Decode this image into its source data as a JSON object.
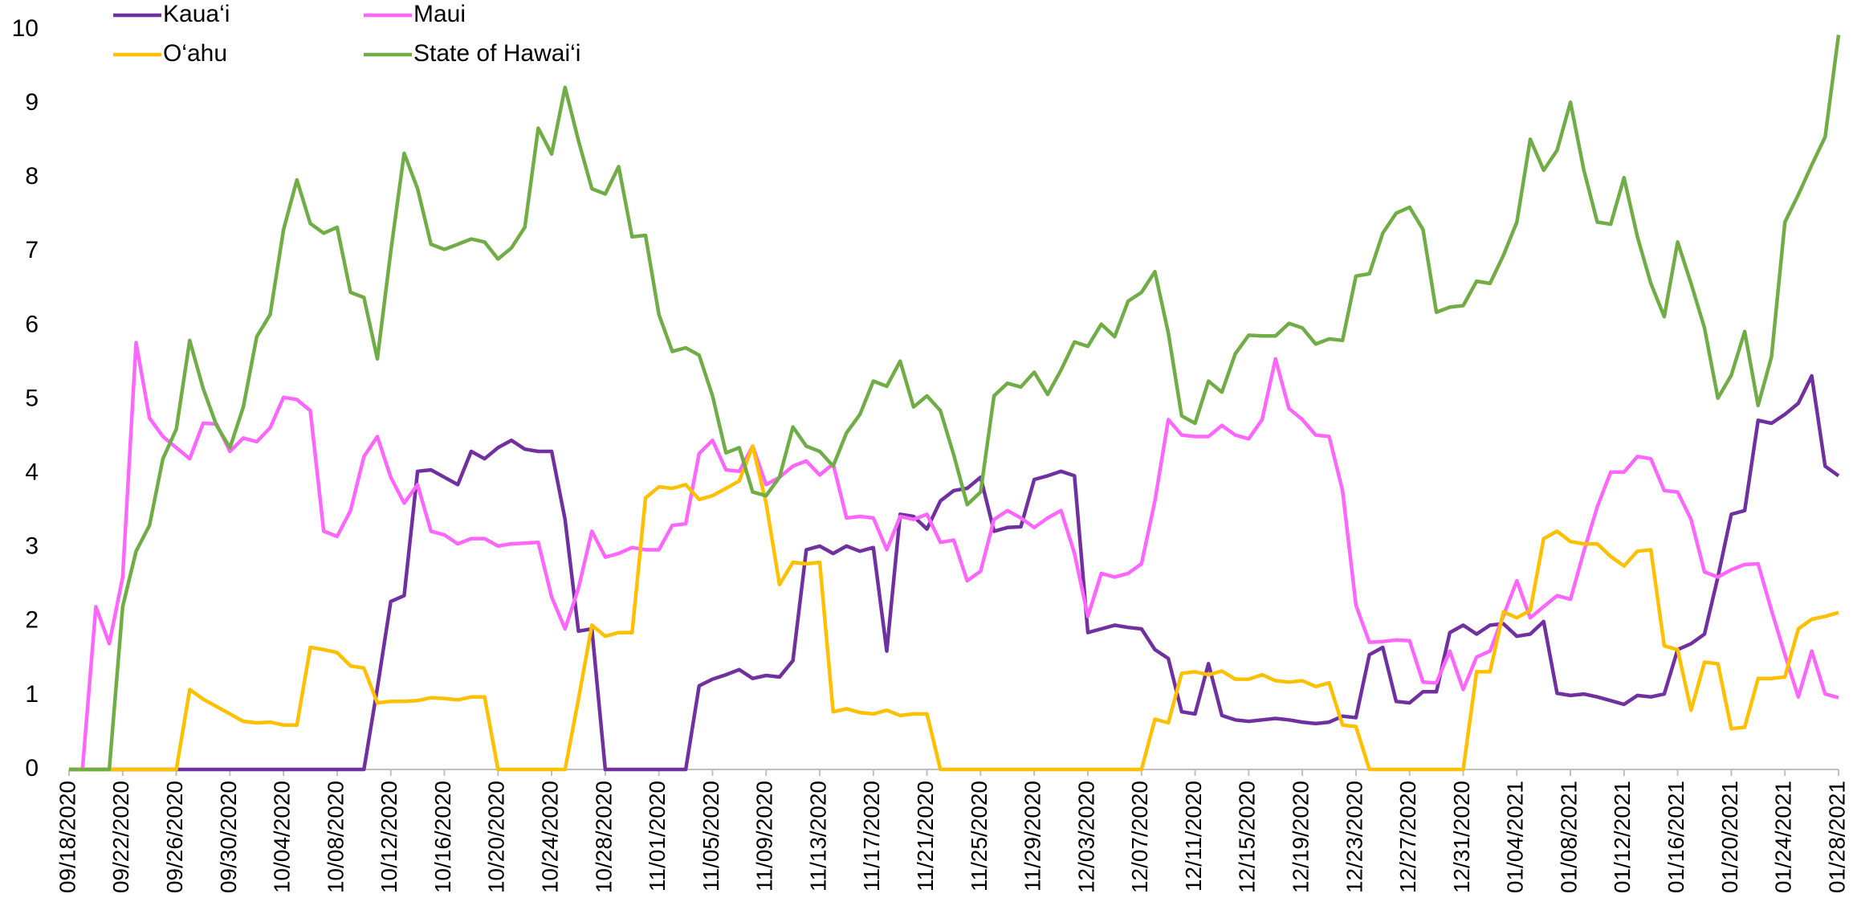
{
  "chart_data": {
    "type": "line",
    "categories": [
      "09/18/2020",
      null,
      null,
      null,
      "09/22/2020",
      null,
      null,
      null,
      "09/26/2020",
      null,
      null,
      null,
      "09/30/2020",
      null,
      null,
      null,
      "10/04/2020",
      null,
      null,
      null,
      "10/08/2020",
      null,
      null,
      null,
      "10/12/2020",
      null,
      null,
      null,
      "10/16/2020",
      null,
      null,
      null,
      "10/20/2020",
      null,
      null,
      null,
      "10/24/2020",
      null,
      null,
      null,
      "10/28/2020",
      null,
      null,
      null,
      "11/01/2020",
      null,
      null,
      null,
      "11/05/2020",
      null,
      null,
      null,
      "11/09/2020",
      null,
      null,
      null,
      "11/13/2020",
      null,
      null,
      null,
      "11/17/2020",
      null,
      null,
      null,
      "11/21/2020",
      null,
      null,
      null,
      "11/25/2020",
      null,
      null,
      null,
      "11/29/2020",
      null,
      null,
      null,
      "12/03/2020",
      null,
      null,
      null,
      "12/07/2020",
      null,
      null,
      null,
      "12/11/2020",
      null,
      null,
      null,
      "12/15/2020",
      null,
      null,
      null,
      "12/19/2020",
      null,
      null,
      null,
      "12/23/2020",
      null,
      null,
      null,
      "12/27/2020",
      null,
      null,
      null,
      "12/31/2020",
      null,
      null,
      null,
      "01/04/2021",
      null,
      null,
      null,
      "01/08/2021",
      null,
      null,
      null,
      "01/12/2021",
      null,
      null,
      null,
      "01/16/2021",
      null,
      null,
      null,
      "01/20/2021",
      null,
      null,
      null,
      "01/24/2021",
      null,
      null,
      null,
      "01/28/2021"
    ],
    "series": [
      {
        "name": "Kaua‘i",
        "color": "#7030a0",
        "values": [
          0,
          0,
          0,
          0,
          0,
          0,
          0,
          0,
          0,
          0,
          0,
          0,
          0,
          0,
          0,
          0,
          0,
          0,
          0,
          0,
          0,
          0,
          0,
          1.1,
          2.27,
          2.35,
          4.03,
          4.05,
          3.95,
          3.85,
          4.3,
          4.2,
          4.35,
          4.45,
          4.33,
          4.3,
          4.3,
          3.38,
          1.87,
          1.9,
          0,
          0,
          0,
          0,
          0,
          0,
          0,
          1.13,
          1.22,
          1.28,
          1.35,
          1.23,
          1.27,
          1.25,
          1.47,
          2.97,
          3.02,
          2.92,
          3.02,
          2.95,
          3.0,
          1.6,
          3.45,
          3.42,
          3.25,
          3.63,
          3.77,
          3.8,
          3.95,
          3.22,
          3.27,
          3.28,
          3.92,
          3.97,
          4.03,
          3.97,
          1.85,
          1.9,
          1.95,
          1.92,
          1.9,
          1.62,
          1.5,
          0.78,
          0.75,
          1.43,
          0.73,
          0.67,
          0.65,
          0.67,
          0.69,
          0.67,
          0.64,
          0.62,
          0.64,
          0.72,
          0.7,
          1.55,
          1.65,
          0.92,
          0.9,
          1.05,
          1.05,
          1.85,
          1.95,
          1.83,
          1.95,
          1.97,
          1.8,
          1.83,
          2.0,
          1.03,
          1.0,
          1.02,
          0.98,
          0.93,
          0.88,
          1.0,
          0.98,
          1.02,
          1.62,
          1.7,
          1.83,
          2.6,
          3.45,
          3.5,
          4.72,
          4.68,
          4.8,
          4.95,
          5.32,
          4.1,
          3.97
        ]
      },
      {
        "name": "Maui",
        "color": "#ff66ff",
        "values": [
          0,
          0,
          2.2,
          1.7,
          2.6,
          5.77,
          4.75,
          4.5,
          4.35,
          4.2,
          4.68,
          4.67,
          4.3,
          4.48,
          4.43,
          4.62,
          5.03,
          5.0,
          4.85,
          3.22,
          3.15,
          3.5,
          4.23,
          4.5,
          3.95,
          3.6,
          3.85,
          3.22,
          3.17,
          3.05,
          3.12,
          3.12,
          3.02,
          3.05,
          3.06,
          3.07,
          2.33,
          1.9,
          2.45,
          3.22,
          2.87,
          2.92,
          3.0,
          2.97,
          2.97,
          3.3,
          3.32,
          4.27,
          4.45,
          4.05,
          4.03,
          4.37,
          3.85,
          3.95,
          4.1,
          4.17,
          3.98,
          4.13,
          3.4,
          3.42,
          3.4,
          2.97,
          3.42,
          3.38,
          3.45,
          3.07,
          3.1,
          2.55,
          2.68,
          3.38,
          3.5,
          3.4,
          3.27,
          3.4,
          3.5,
          2.92,
          2.07,
          2.65,
          2.6,
          2.65,
          2.78,
          3.63,
          4.73,
          4.52,
          4.5,
          4.5,
          4.65,
          4.52,
          4.47,
          4.73,
          5.55,
          4.88,
          4.73,
          4.52,
          4.5,
          3.77,
          2.22,
          1.72,
          1.73,
          1.75,
          1.74,
          1.18,
          1.17,
          1.6,
          1.08,
          1.52,
          1.6,
          2.08,
          2.55,
          2.05,
          2.2,
          2.35,
          2.3,
          2.95,
          3.55,
          4.02,
          4.02,
          4.23,
          4.2,
          3.77,
          3.75,
          3.38,
          2.67,
          2.6,
          2.7,
          2.77,
          2.78,
          2.15,
          1.55,
          0.98,
          1.6,
          1.02,
          0.97
        ]
      },
      {
        "name": "O‘ahu",
        "color": "#ffc000",
        "values": [
          0,
          0,
          0,
          0,
          0,
          0,
          0,
          0,
          0,
          1.08,
          0.95,
          0.85,
          0.75,
          0.65,
          0.63,
          0.64,
          0.6,
          0.6,
          1.65,
          1.62,
          1.58,
          1.4,
          1.37,
          0.9,
          0.92,
          0.92,
          0.93,
          0.97,
          0.96,
          0.94,
          0.98,
          0.98,
          0,
          0,
          0,
          0,
          0,
          0,
          0.95,
          1.95,
          1.8,
          1.85,
          1.85,
          3.67,
          3.82,
          3.8,
          3.85,
          3.65,
          3.7,
          3.8,
          3.9,
          4.37,
          3.6,
          2.5,
          2.8,
          2.78,
          2.8,
          0.78,
          0.82,
          0.77,
          0.75,
          0.8,
          0.73,
          0.75,
          0.75,
          0,
          0,
          0,
          0,
          0,
          0,
          0,
          0,
          0,
          0,
          0,
          0,
          0,
          0,
          0,
          0,
          0.68,
          0.63,
          1.3,
          1.32,
          1.28,
          1.33,
          1.22,
          1.22,
          1.28,
          1.2,
          1.18,
          1.2,
          1.12,
          1.17,
          0.6,
          0.58,
          0,
          0,
          0,
          0,
          0,
          0,
          0,
          0,
          1.32,
          1.32,
          2.13,
          2.05,
          2.15,
          3.12,
          3.22,
          3.08,
          3.05,
          3.05,
          2.88,
          2.75,
          2.95,
          2.97,
          1.67,
          1.62,
          0.8,
          1.45,
          1.43,
          0.55,
          0.57,
          1.23,
          1.23,
          1.25,
          1.9,
          2.03,
          2.07,
          2.12
        ]
      },
      {
        "name": "State of Hawai‘i",
        "color": "#70ad47",
        "values": [
          0,
          0,
          0,
          0,
          2.2,
          2.95,
          3.3,
          4.2,
          4.6,
          5.8,
          5.15,
          4.65,
          4.35,
          4.9,
          5.85,
          6.15,
          7.3,
          7.97,
          7.38,
          7.25,
          7.33,
          6.45,
          6.38,
          5.55,
          7.0,
          8.33,
          7.85,
          7.1,
          7.03,
          7.1,
          7.17,
          7.13,
          6.9,
          7.05,
          7.33,
          8.67,
          8.32,
          9.22,
          8.5,
          7.85,
          7.78,
          8.15,
          7.2,
          7.22,
          6.15,
          5.65,
          5.7,
          5.6,
          5.05,
          4.28,
          4.35,
          3.75,
          3.7,
          3.95,
          4.63,
          4.37,
          4.3,
          4.1,
          4.55,
          4.8,
          5.25,
          5.18,
          5.52,
          4.9,
          5.05,
          4.85,
          4.25,
          3.58,
          3.75,
          5.05,
          5.22,
          5.17,
          5.37,
          5.07,
          5.4,
          5.78,
          5.72,
          6.02,
          5.85,
          6.33,
          6.45,
          6.73,
          5.9,
          4.78,
          4.68,
          5.25,
          5.1,
          5.62,
          5.87,
          5.86,
          5.86,
          6.03,
          5.97,
          5.75,
          5.82,
          5.8,
          6.67,
          6.7,
          7.25,
          7.52,
          7.6,
          7.3,
          6.18,
          6.25,
          6.27,
          6.6,
          6.57,
          6.95,
          7.4,
          8.52,
          8.1,
          8.37,
          9.02,
          8.1,
          7.4,
          7.37,
          8.0,
          7.2,
          6.57,
          6.12,
          7.13,
          6.57,
          5.97,
          5.02,
          5.33,
          5.92,
          4.92,
          5.58,
          7.4,
          7.77,
          8.17,
          8.55,
          9.93
        ]
      }
    ],
    "ylim": [
      0,
      10
    ],
    "yticks": [
      0,
      1,
      2,
      3,
      4,
      5,
      6,
      7,
      8,
      9,
      10
    ],
    "grid": false,
    "legend": "top-left"
  }
}
